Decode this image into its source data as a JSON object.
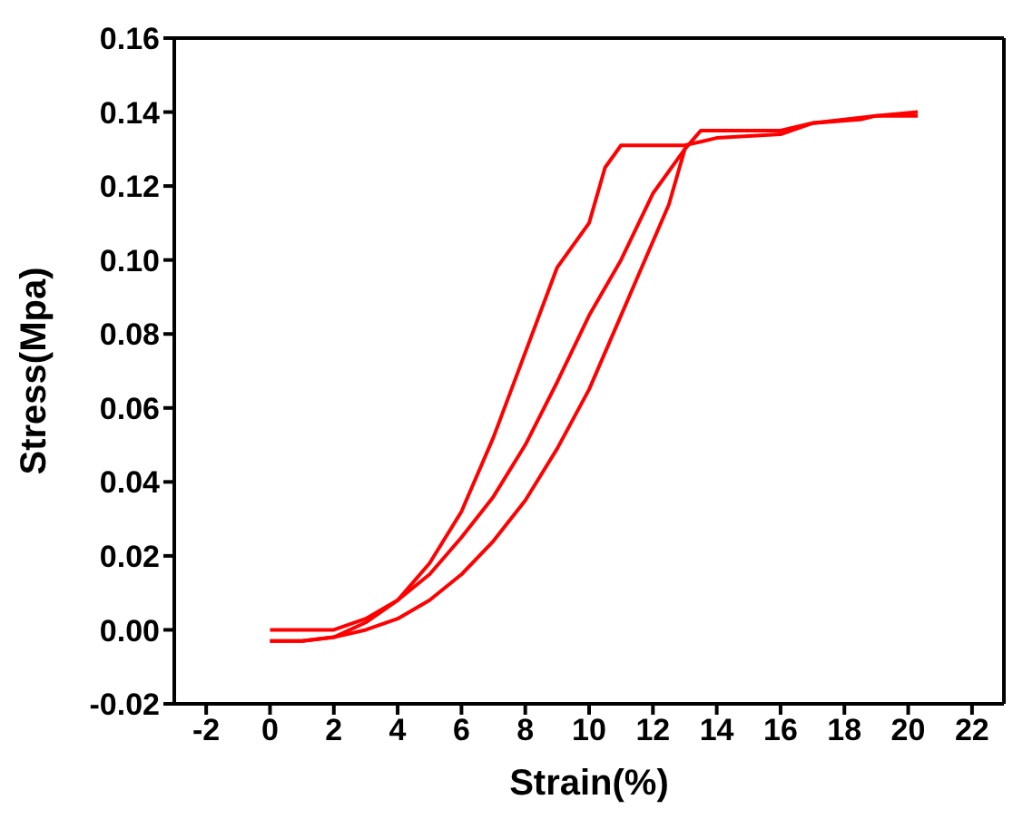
{
  "chart_data": {
    "type": "line",
    "xlabel": "Strain(%)",
    "ylabel": "Stress(Mpa)",
    "xlim": [
      -3,
      23
    ],
    "xticks": [
      -2,
      0,
      2,
      4,
      6,
      8,
      10,
      12,
      14,
      16,
      18,
      20,
      22
    ],
    "ylim": [
      -0.02,
      0.16
    ],
    "yticks": [
      {
        "value": -0.02,
        "label": "-0.02"
      },
      {
        "value": 0,
        "label": "0.00"
      },
      {
        "value": 0.02,
        "label": "0.02"
      },
      {
        "value": 0.04,
        "label": "0.04"
      },
      {
        "value": 0.06,
        "label": "0.06"
      },
      {
        "value": 0.08,
        "label": "0.08"
      },
      {
        "value": 0.1,
        "label": "0.10"
      },
      {
        "value": 0.12,
        "label": "0.12"
      },
      {
        "value": 0.14,
        "label": "0.14"
      },
      {
        "value": 0.16,
        "label": "0.16"
      }
    ],
    "marker": "none",
    "line_style": "solid",
    "series": [
      {
        "color": "#ff0000",
        "x": [
          0,
          1,
          2,
          3,
          4,
          5,
          6,
          7,
          8,
          9,
          10,
          11,
          11.5,
          12,
          12.5,
          13,
          13.5,
          14,
          16,
          17,
          18,
          19,
          20.3
        ],
        "values": [
          -0.003,
          -0.003,
          -0.002,
          0,
          0.003,
          0.008,
          0.015,
          0.024,
          0.035,
          0.049,
          0.065,
          0.085,
          0.095,
          0.105,
          0.115,
          0.13,
          0.135,
          0.135,
          0.135,
          0.137,
          0.138,
          0.139,
          0.14
        ]
      },
      {
        "color": "#ff0000",
        "x": [
          20.3,
          19,
          18.5,
          17,
          16,
          14,
          13.5,
          13,
          12,
          11,
          10.5,
          10,
          9,
          8,
          7,
          6,
          5,
          4,
          3,
          2,
          1,
          0
        ],
        "values": [
          0.139,
          0.139,
          0.138,
          0.137,
          0.134,
          0.133,
          0.132,
          0.131,
          0.131,
          0.131,
          0.125,
          0.11,
          0.098,
          0.075,
          0.052,
          0.032,
          0.018,
          0.008,
          0.002,
          -0.002,
          -0.003,
          -0.003
        ]
      },
      {
        "color": "#ff0000",
        "x": [
          0,
          1,
          2,
          3,
          4,
          5,
          6,
          7,
          8,
          9,
          10,
          11,
          12,
          13
        ],
        "values": [
          0,
          0,
          0,
          0.003,
          0.008,
          0.015,
          0.025,
          0.036,
          0.05,
          0.067,
          0.085,
          0.1,
          0.118,
          0.13
        ]
      }
    ]
  }
}
